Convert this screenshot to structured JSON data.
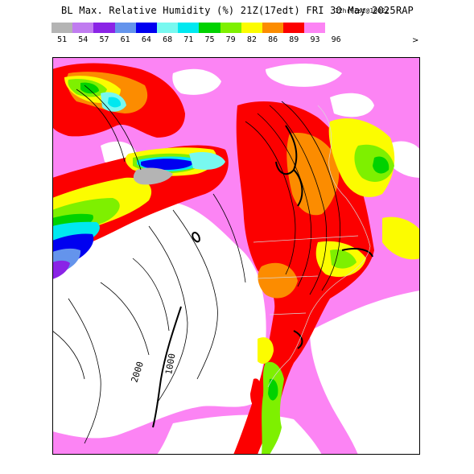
{
  "title": {
    "main": "BL Max. Relative Humidity (%) 21Z(17edt) FRI 30 May 2025",
    "forecast": "12hrFcst@1002z",
    "model": "RAP"
  },
  "legend": {
    "colors": [
      "#b4b4b4",
      "#c07cf0",
      "#8a24e6",
      "#6494ec",
      "#0000f0",
      "#78f8f0",
      "#00e8f0",
      "#00d200",
      "#7ef000",
      "#fcfc00",
      "#fc8c00",
      "#fc0000",
      "#fc84f4",
      "#ffffff"
    ],
    "labels": [
      "51",
      "54",
      "57",
      "61",
      "64",
      "68",
      "71",
      "75",
      "79",
      "82",
      "86",
      "89",
      "93",
      "96"
    ],
    "more": ">"
  },
  "map": {
    "contour_labels": [
      "2000",
      "1000"
    ]
  }
}
